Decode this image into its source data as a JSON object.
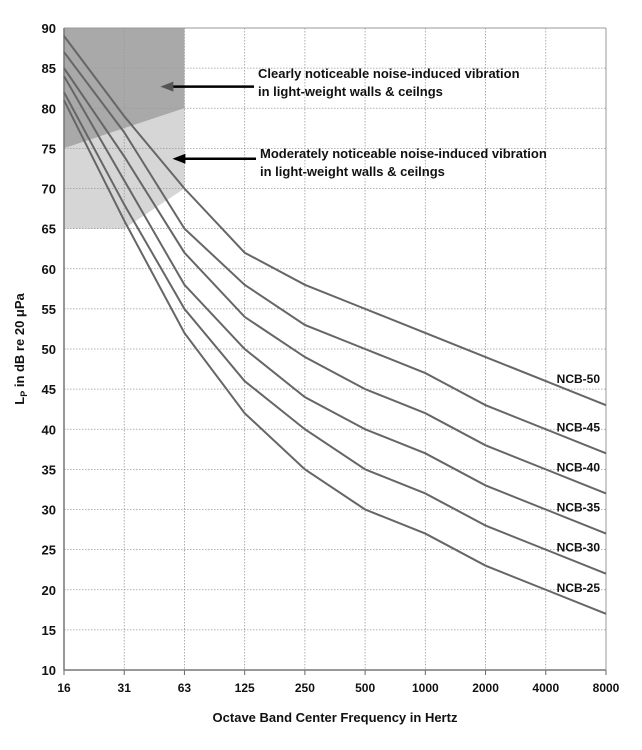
{
  "chart_data": {
    "type": "line",
    "title": "",
    "xlabel": "Octave Band Center Frequency in Hertz",
    "ylabel_main": "L",
    "ylabel_sub": "P",
    "ylabel_rest": " in dB re 20 μPa",
    "x": [
      "16",
      "31",
      "63",
      "125",
      "250",
      "500",
      "1000",
      "2000",
      "4000",
      "8000"
    ],
    "ylim": [
      10,
      90
    ],
    "yticks": [
      10,
      15,
      20,
      25,
      30,
      35,
      40,
      45,
      50,
      55,
      60,
      65,
      70,
      75,
      80,
      85,
      90
    ],
    "grid": true,
    "series": [
      {
        "name": "NCB-50",
        "values": [
          89,
          79,
          70,
          62,
          58,
          55,
          52,
          49,
          46,
          43
        ]
      },
      {
        "name": "NCB-45",
        "values": [
          87,
          77,
          65,
          58,
          53,
          50,
          47,
          43,
          40,
          37
        ]
      },
      {
        "name": "NCB-40",
        "values": [
          85,
          74,
          62,
          54,
          49,
          45,
          42,
          38,
          35,
          32
        ]
      },
      {
        "name": "NCB-35",
        "values": [
          84,
          71,
          58,
          50,
          44,
          40,
          37,
          33,
          30,
          27
        ]
      },
      {
        "name": "NCB-30",
        "values": [
          82,
          68,
          55,
          46,
          40,
          35,
          32,
          28,
          25,
          22
        ]
      },
      {
        "name": "NCB-25",
        "values": [
          81,
          66,
          52,
          42,
          35,
          30,
          27,
          23,
          20,
          17
        ]
      }
    ],
    "regions": [
      {
        "name": "clearly-noticeable",
        "polygon": [
          [
            0,
            75
          ],
          [
            2,
            80
          ],
          [
            2,
            90
          ],
          [
            0,
            90
          ]
        ],
        "color": "#a9a9a9"
      },
      {
        "name": "moderately-noticeable",
        "polygon": [
          [
            0,
            65
          ],
          [
            1,
            65
          ],
          [
            2,
            70
          ],
          [
            2,
            80
          ],
          [
            0,
            75
          ]
        ],
        "color": "#d6d6d6"
      }
    ],
    "annotations": [
      {
        "line1": "Clearly noticeable noise-induced vibration",
        "line2": "in light-weight walls & ceilngs",
        "arrow_to": [
          1.6,
          82.7
        ],
        "arrow_color": "#555555"
      },
      {
        "line1": "Moderately noticeable noise-induced vibration",
        "line2": "in light-weight walls & ceilngs",
        "arrow_to": [
          1.8,
          73.7
        ],
        "arrow_color": "#000000"
      }
    ],
    "line_color": "#666666"
  }
}
